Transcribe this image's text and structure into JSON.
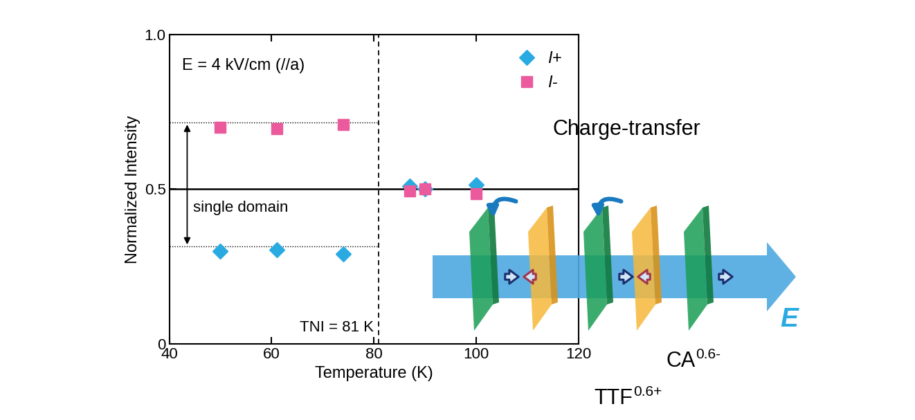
{
  "chart_data": {
    "type": "scatter",
    "x": [
      50,
      61,
      74,
      87,
      90,
      100
    ],
    "series": [
      {
        "name": "I+",
        "color": "#29abe2",
        "marker": "diamond",
        "values": [
          0.3,
          0.305,
          0.29,
          0.51,
          0.5,
          0.515
        ]
      },
      {
        "name": "I-",
        "color": "#ea5a9c",
        "marker": "square",
        "values": [
          0.7,
          0.695,
          0.71,
          0.495,
          0.5,
          0.485
        ]
      }
    ],
    "xlabel": "Temperature (K)",
    "ylabel": "Normalized Intensity",
    "xlim": [
      40,
      120
    ],
    "ylim": [
      0,
      1.0
    ],
    "xticks": [
      40,
      60,
      80,
      100,
      120
    ],
    "yticks": [
      0,
      0.5,
      1.0
    ],
    "legend": "upper right",
    "annotations": [
      "E = 4 kV/cm (//a)"
    ],
    "transition": {
      "label": "TNI = 81 K",
      "value": 81
    },
    "reference_line": 0.5,
    "single_domain": {
      "label": "single domain",
      "levels": [
        0.315,
        0.715
      ]
    }
  },
  "diagram": {
    "arrow_label": "Charge-transfer",
    "field_label": "E",
    "molecules": [
      {
        "text": "CA",
        "superscript": "0.6-"
      },
      {
        "text": "TTF",
        "superscript": "0.6+"
      }
    ]
  }
}
